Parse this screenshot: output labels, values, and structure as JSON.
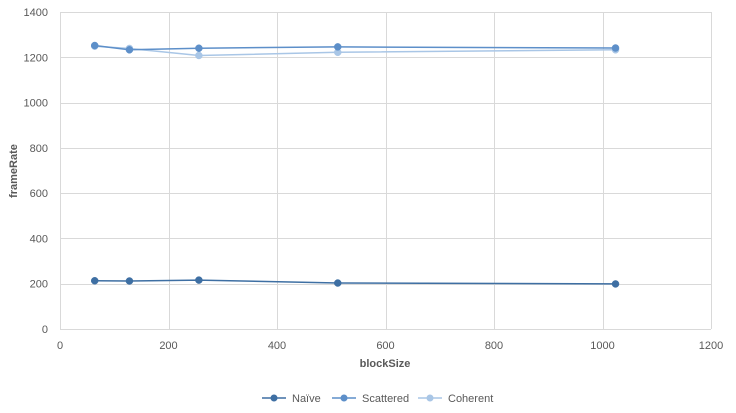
{
  "chart_data": {
    "type": "scatter",
    "title": "",
    "xlabel": "blockSize",
    "ylabel": "frameRate",
    "xlim": [
      0,
      1200
    ],
    "ylim": [
      0,
      1400
    ],
    "xticks": [
      0,
      200,
      400,
      600,
      800,
      1000,
      1200
    ],
    "yticks": [
      0,
      200,
      400,
      600,
      800,
      1000,
      1200,
      1400
    ],
    "grid": true,
    "legend_position": "bottom",
    "lines_with_markers": true,
    "series": [
      {
        "name": "Naïve",
        "color": "#3E6FA3",
        "points": [
          [
            64,
            213
          ],
          [
            128,
            212
          ],
          [
            256,
            216
          ],
          [
            512,
            203
          ],
          [
            1024,
            199
          ]
        ]
      },
      {
        "name": "Scattered",
        "color": "#5D8FC9",
        "points": [
          [
            64,
            1252
          ],
          [
            128,
            1233
          ],
          [
            256,
            1240
          ],
          [
            512,
            1246
          ],
          [
            1024,
            1241
          ]
        ]
      },
      {
        "name": "Coherent",
        "color": "#A9C6E6",
        "points": [
          [
            64,
            1249
          ],
          [
            128,
            1239
          ],
          [
            256,
            1208
          ],
          [
            512,
            1222
          ],
          [
            1024,
            1233
          ]
        ]
      }
    ]
  }
}
